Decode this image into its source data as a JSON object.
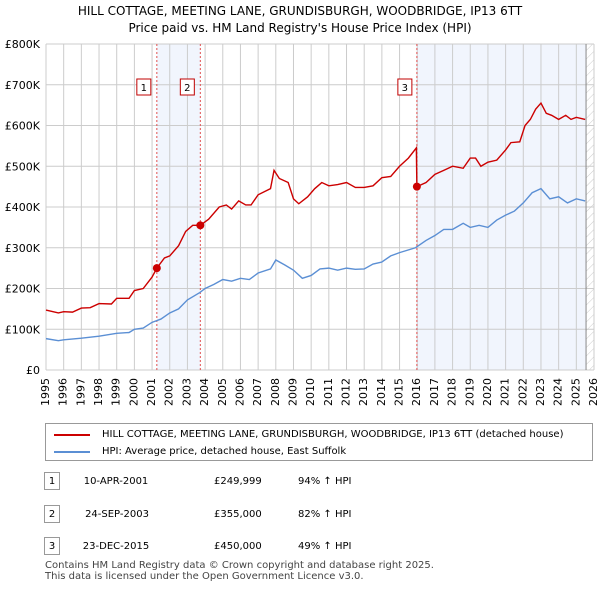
{
  "chart_data": {
    "type": "line",
    "title": "HILL COTTAGE, MEETING LANE, GRUNDISBURGH, WOODBRIDGE, IP13 6TT",
    "subtitle": "Price paid vs. HM Land Registry's House Price Index (HPI)",
    "xlim": [
      1995,
      2026
    ],
    "ylim": [
      0,
      800000
    ],
    "x_ticks": [
      "1995",
      "1996",
      "1997",
      "1998",
      "1999",
      "2000",
      "2001",
      "2002",
      "2003",
      "2004",
      "2005",
      "2006",
      "2007",
      "2008",
      "2009",
      "2010",
      "2011",
      "2012",
      "2013",
      "2014",
      "2015",
      "2016",
      "2017",
      "2018",
      "2019",
      "2020",
      "2021",
      "2022",
      "2023",
      "2024",
      "2025",
      "2026"
    ],
    "y_ticks": [
      {
        "v": 0,
        "l": "£0"
      },
      {
        "v": 100000,
        "l": "£100K"
      },
      {
        "v": 200000,
        "l": "£200K"
      },
      {
        "v": 300000,
        "l": "£300K"
      },
      {
        "v": 400000,
        "l": "£400K"
      },
      {
        "v": 500000,
        "l": "£500K"
      },
      {
        "v": 600000,
        "l": "£600K"
      },
      {
        "v": 700000,
        "l": "£700K"
      },
      {
        "v": 800000,
        "l": "£800K"
      }
    ],
    "grid": true,
    "shaded_ranges": [
      [
        2001.27,
        2003.73
      ],
      [
        2015.98,
        2025.55
      ]
    ],
    "hatch_from": 2025.55,
    "series": [
      {
        "name": "HILL COTTAGE, MEETING LANE, GRUNDISBURGH, WOODBRIDGE, IP13 6TT (detached house)",
        "color": "#cc0000",
        "points": [
          [
            1995,
            147
          ],
          [
            1995.7,
            140
          ],
          [
            1996,
            143
          ],
          [
            1996.5,
            142
          ],
          [
            1997,
            152
          ],
          [
            1997.5,
            153
          ],
          [
            1998,
            163
          ],
          [
            1998.7,
            162
          ],
          [
            1999,
            176
          ],
          [
            1999.7,
            176
          ],
          [
            2000,
            195
          ],
          [
            2000.5,
            200
          ],
          [
            2001,
            228
          ],
          [
            2001.27,
            250
          ],
          [
            2001.7,
            275
          ],
          [
            2002,
            280
          ],
          [
            2002.5,
            305
          ],
          [
            2002.9,
            340
          ],
          [
            2003.3,
            355
          ],
          [
            2003.73,
            355
          ],
          [
            2004.2,
            370
          ],
          [
            2004.8,
            400
          ],
          [
            2005.2,
            405
          ],
          [
            2005.5,
            395
          ],
          [
            2005.9,
            415
          ],
          [
            2006.3,
            405
          ],
          [
            2006.6,
            405
          ],
          [
            2007,
            430
          ],
          [
            2007.7,
            445
          ],
          [
            2007.9,
            490
          ],
          [
            2008.2,
            470
          ],
          [
            2008.7,
            460
          ],
          [
            2009,
            420
          ],
          [
            2009.3,
            408
          ],
          [
            2009.8,
            425
          ],
          [
            2010.2,
            445
          ],
          [
            2010.6,
            460
          ],
          [
            2011,
            452
          ],
          [
            2011.5,
            455
          ],
          [
            2012,
            460
          ],
          [
            2012.5,
            448
          ],
          [
            2013,
            448
          ],
          [
            2013.5,
            452
          ],
          [
            2014,
            472
          ],
          [
            2014.5,
            475
          ],
          [
            2015,
            500
          ],
          [
            2015.5,
            520
          ],
          [
            2015.95,
            545
          ],
          [
            2015.98,
            450
          ],
          [
            2016.5,
            460
          ],
          [
            2017,
            480
          ],
          [
            2017.5,
            490
          ],
          [
            2018,
            500
          ],
          [
            2018.6,
            495
          ],
          [
            2019,
            520
          ],
          [
            2019.3,
            520
          ],
          [
            2019.6,
            500
          ],
          [
            2020,
            510
          ],
          [
            2020.5,
            515
          ],
          [
            2021,
            540
          ],
          [
            2021.3,
            558
          ],
          [
            2021.8,
            560
          ],
          [
            2022.1,
            600
          ],
          [
            2022.4,
            615
          ],
          [
            2022.7,
            640
          ],
          [
            2023,
            655
          ],
          [
            2023.3,
            630
          ],
          [
            2023.6,
            625
          ],
          [
            2024,
            615
          ],
          [
            2024.4,
            625
          ],
          [
            2024.7,
            615
          ],
          [
            2025,
            620
          ],
          [
            2025.5,
            615
          ]
        ]
      },
      {
        "name": "HPI: Average price, detached house, East Suffolk",
        "color": "#5b8fd4",
        "points": [
          [
            1995,
            77
          ],
          [
            1995.7,
            72
          ],
          [
            1996,
            74
          ],
          [
            1997,
            78
          ],
          [
            1998,
            83
          ],
          [
            1999,
            90
          ],
          [
            1999.7,
            92
          ],
          [
            2000,
            100
          ],
          [
            2000.5,
            103
          ],
          [
            2001,
            117
          ],
          [
            2001.5,
            125
          ],
          [
            2002,
            140
          ],
          [
            2002.5,
            150
          ],
          [
            2003,
            172
          ],
          [
            2003.7,
            190
          ],
          [
            2004,
            200
          ],
          [
            2004.5,
            210
          ],
          [
            2005,
            222
          ],
          [
            2005.5,
            218
          ],
          [
            2006,
            225
          ],
          [
            2006.5,
            222
          ],
          [
            2007,
            238
          ],
          [
            2007.7,
            248
          ],
          [
            2008,
            270
          ],
          [
            2008.5,
            258
          ],
          [
            2009,
            245
          ],
          [
            2009.5,
            225
          ],
          [
            2010,
            232
          ],
          [
            2010.5,
            248
          ],
          [
            2011,
            250
          ],
          [
            2011.5,
            245
          ],
          [
            2012,
            250
          ],
          [
            2012.5,
            247
          ],
          [
            2013,
            248
          ],
          [
            2013.5,
            260
          ],
          [
            2014,
            265
          ],
          [
            2014.5,
            280
          ],
          [
            2015,
            288
          ],
          [
            2015.9,
            300
          ],
          [
            2016.5,
            318
          ],
          [
            2017,
            330
          ],
          [
            2017.5,
            345
          ],
          [
            2018,
            345
          ],
          [
            2018.6,
            360
          ],
          [
            2019,
            350
          ],
          [
            2019.5,
            355
          ],
          [
            2020,
            350
          ],
          [
            2020.5,
            368
          ],
          [
            2021,
            380
          ],
          [
            2021.5,
            390
          ],
          [
            2022,
            410
          ],
          [
            2022.5,
            435
          ],
          [
            2023,
            445
          ],
          [
            2023.5,
            420
          ],
          [
            2024,
            425
          ],
          [
            2024.5,
            410
          ],
          [
            2025,
            420
          ],
          [
            2025.5,
            415
          ]
        ]
      }
    ],
    "sales": [
      {
        "n": "1",
        "x": 2001.27,
        "y": 249999,
        "date": "10-APR-2001",
        "price": "£249,999",
        "hpi": "94% ↑ HPI"
      },
      {
        "n": "2",
        "x": 2003.73,
        "y": 355000,
        "date": "24-SEP-2003",
        "price": "£355,000",
        "hpi": "82% ↑ HPI"
      },
      {
        "n": "3",
        "x": 2015.98,
        "y": 450000,
        "date": "23-DEC-2015",
        "price": "£450,000",
        "hpi": "49% ↑ HPI"
      }
    ],
    "value_units": "thousands GBP in points"
  },
  "footer": [
    "Contains HM Land Registry data © Crown copyright and database right 2025.",
    "This data is licensed under the Open Government Licence v3.0."
  ]
}
